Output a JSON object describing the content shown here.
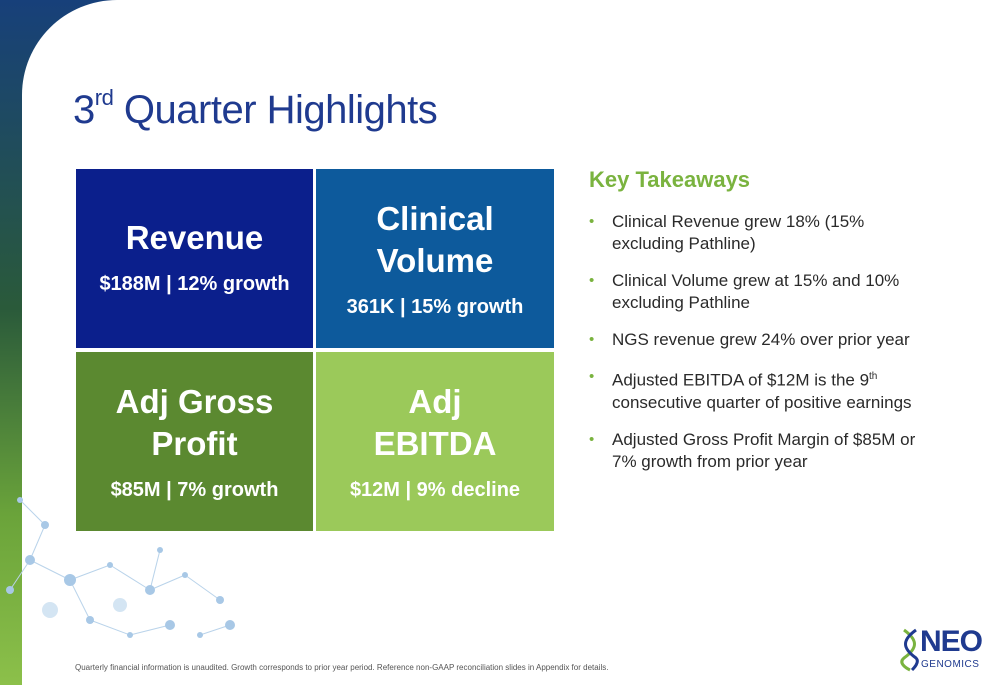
{
  "slide": {
    "title_prefix": "3",
    "title_sup": "rd",
    "title_rest": " Quarter Highlights"
  },
  "tiles": [
    {
      "title_line1": "Revenue",
      "title_line2": "",
      "subtitle": "$188M | 12% growth",
      "color": "#0b1f8c"
    },
    {
      "title_line1": "Clinical",
      "title_line2": "Volume",
      "subtitle": "361K | 15% growth",
      "color": "#0d5a9c"
    },
    {
      "title_line1": "Adj Gross",
      "title_line2": "Profit",
      "subtitle": "$85M | 7% growth",
      "color": "#5b8930"
    },
    {
      "title_line1": "Adj",
      "title_line2": "EBITDA",
      "subtitle": "$12M | 9% decline",
      "color": "#9bc95a"
    }
  ],
  "takeaways": {
    "heading": "Key Takeaways",
    "bullet_glyph": "•",
    "items": [
      {
        "text": "Clinical Revenue grew  18% (15% excluding Pathline)"
      },
      {
        "text": "Clinical Volume grew at 15% and 10% excluding Pathline"
      },
      {
        "text": "NGS revenue grew 24% over prior year"
      },
      {
        "text_a": "Adjusted EBITDA of $12M is the 9",
        "sup": "th",
        "text_b": " consecutive quarter of positive earnings"
      },
      {
        "text": "Adjusted Gross Profit Margin of $85M or 7% growth from prior year"
      }
    ]
  },
  "footnote": "Quarterly financial information is unaudited. Growth corresponds to prior year period. Reference non-GAAP reconciliation slides in Appendix for details.",
  "logo": {
    "name": "NEO",
    "tagline": "GENOMICS",
    "icon": "dna-helix-icon"
  },
  "colors": {
    "title_blue": "#1f3a8f",
    "accent_green": "#7ab33f"
  }
}
